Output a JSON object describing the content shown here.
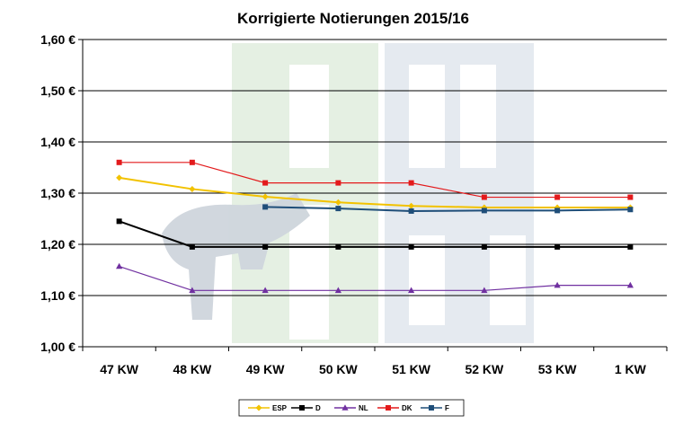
{
  "chart_data": {
    "type": "line",
    "title": "Korrigierte Notierungen 2015/16",
    "xlabel": "",
    "ylabel": "",
    "categories": [
      "47 KW",
      "48 KW",
      "49 KW",
      "50 KW",
      "51 KW",
      "52 KW",
      "53 KW",
      "1 KW"
    ],
    "ylim": [
      1.0,
      1.6
    ],
    "yticks": [
      1.0,
      1.1,
      1.2,
      1.3,
      1.4,
      1.5,
      1.6
    ],
    "ytick_labels": [
      "1,00 €",
      "1,10 €",
      "1,20 €",
      "1,30 €",
      "1,40 €",
      "1,50 €",
      "1,60 €"
    ],
    "grid": true,
    "legend_position": "bottom",
    "series": [
      {
        "name": "ESP",
        "color": "#f2c200",
        "marker": "diamond",
        "values": [
          1.33,
          1.308,
          1.293,
          1.282,
          1.275,
          1.272,
          1.272,
          1.272
        ]
      },
      {
        "name": "D",
        "color": "#000000",
        "marker": "square",
        "values": [
          1.245,
          1.195,
          1.195,
          1.195,
          1.195,
          1.195,
          1.195,
          1.195
        ]
      },
      {
        "name": "NL",
        "color": "#7030a0",
        "marker": "triangle",
        "values": [
          1.157,
          1.11,
          1.11,
          1.11,
          1.11,
          1.11,
          1.12,
          1.12
        ]
      },
      {
        "name": "DK",
        "color": "#e31a1c",
        "marker": "square",
        "values": [
          1.36,
          1.36,
          1.32,
          1.32,
          1.32,
          1.292,
          1.292,
          1.292
        ]
      },
      {
        "name": "F",
        "color": "#1f4e79",
        "marker": "square",
        "values": [
          null,
          null,
          1.273,
          1.27,
          1.265,
          1.266,
          1.266,
          1.268
        ]
      }
    ]
  }
}
